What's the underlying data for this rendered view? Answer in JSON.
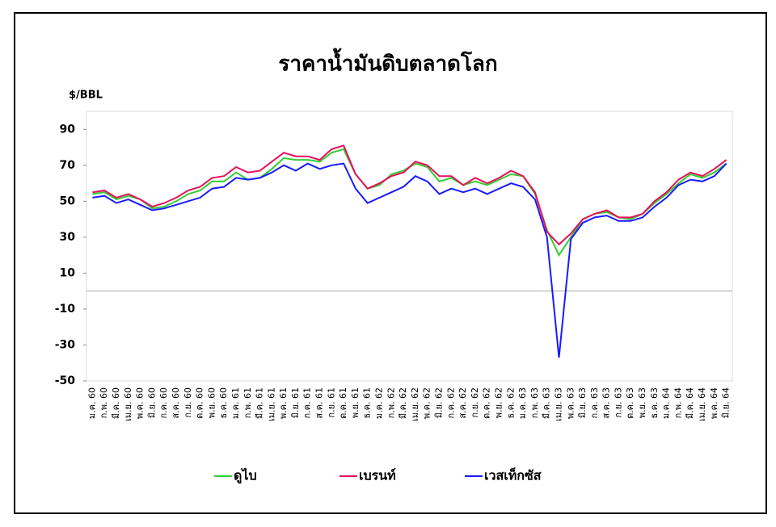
{
  "chart_data": {
    "type": "line",
    "title": "ราคาน้ำมันดิบตลาดโลก",
    "y_label": "$/BBL",
    "categories": [
      "ม.ค. 60",
      "ก.พ. 60",
      "มี.ค. 60",
      "เม.ย. 60",
      "พ.ค. 60",
      "มิ.ย. 60",
      "ก.ค. 60",
      "ส.ค. 60",
      "ก.ย. 60",
      "ต.ค. 60",
      "พ.ย. 60",
      "ธ.ค. 60",
      "ม.ค. 61",
      "ก.พ. 61",
      "มี.ค. 61",
      "เม.ย. 61",
      "พ.ค. 61",
      "มิ.ย. 61",
      "ก.ค. 61",
      "ส.ค. 61",
      "ก.ย. 61",
      "ต.ค. 61",
      "พ.ย. 61",
      "ธ.ค. 61",
      "ม.ค. 62",
      "ก.พ. 62",
      "มี.ค. 62",
      "เม.ย. 62",
      "พ.ค. 62",
      "มิ.ย. 62",
      "ก.ค. 62",
      "ส.ค. 62",
      "ก.ย. 62",
      "ต.ค. 62",
      "พ.ย. 62",
      "ธ.ค. 62",
      "ม.ค. 63",
      "ก.พ. 63",
      "มี.ค. 63",
      "เม.ย. 63",
      "พ.ค. 63",
      "มิ.ย. 63",
      "ก.ค. 63",
      "ส.ค. 63",
      "ก.ย. 63",
      "ต.ค. 63",
      "พ.ย. 63",
      "ธ.ค. 63",
      "ม.ค. 64",
      "ก.พ. 64",
      "มี.ค. 64",
      "เม.ย. 64",
      "พ.ค. 64",
      "มิ.ย. 64"
    ],
    "series": [
      {
        "name": "ดูไบ",
        "color": "#33cc33",
        "values": [
          54,
          55,
          51,
          53,
          51,
          46,
          47,
          50,
          54,
          56,
          61,
          61,
          66,
          62,
          63,
          68,
          74,
          73,
          73,
          72,
          77,
          79,
          65,
          57,
          59,
          65,
          67,
          71,
          69,
          61,
          63,
          59,
          61,
          59,
          62,
          65,
          64,
          54,
          34,
          20,
          30,
          40,
          43,
          44,
          41,
          40,
          43,
          49,
          54,
          60,
          65,
          63,
          66,
          71
        ]
      },
      {
        "name": "เบรนท์",
        "color": "#e8105a",
        "values": [
          55,
          56,
          52,
          54,
          51,
          47,
          49,
          52,
          56,
          58,
          63,
          64,
          69,
          66,
          67,
          72,
          77,
          75,
          75,
          73,
          79,
          81,
          65,
          57,
          60,
          64,
          66,
          72,
          70,
          64,
          64,
          59,
          63,
          60,
          63,
          67,
          64,
          55,
          33,
          26,
          32,
          40,
          43,
          45,
          41,
          41,
          43,
          50,
          55,
          62,
          66,
          64,
          68,
          73
        ]
      },
      {
        "name": "เวสเท็กซัส",
        "color": "#1a1aff",
        "values": [
          52,
          53,
          49,
          51,
          48,
          45,
          46,
          48,
          50,
          52,
          57,
          58,
          63,
          62,
          63,
          66,
          70,
          67,
          71,
          68,
          70,
          71,
          57,
          49,
          52,
          55,
          58,
          64,
          61,
          54,
          57,
          55,
          57,
          54,
          57,
          60,
          58,
          51,
          30,
          -37,
          29,
          38,
          41,
          42,
          39,
          39,
          41,
          47,
          52,
          59,
          62,
          61,
          64,
          71
        ]
      }
    ],
    "ylim": [
      -50,
      100
    ],
    "yticks": [
      -50,
      -30,
      -10,
      10,
      30,
      50,
      70,
      90
    ]
  }
}
